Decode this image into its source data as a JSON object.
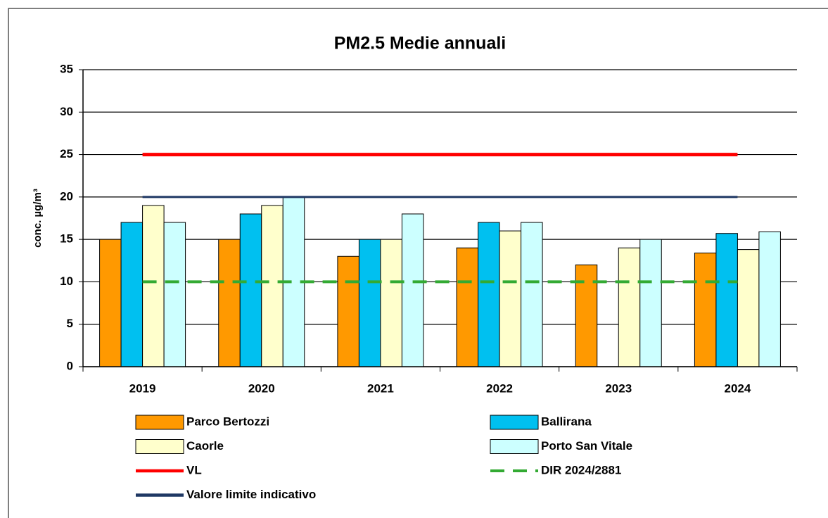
{
  "chart_data": {
    "type": "bar",
    "title": "PM2.5 Medie annuali",
    "y_label": "conc. µg/m³",
    "categories": [
      "2019",
      "2020",
      "2021",
      "2022",
      "2023",
      "2024"
    ],
    "series": [
      {
        "name": "Parco Bertozzi",
        "color": "#ff9900",
        "values": [
          15,
          15,
          13,
          14,
          12,
          13.4
        ]
      },
      {
        "name": "Ballirana",
        "color": "#00c0f0",
        "values": [
          17,
          18,
          15,
          17,
          null,
          15.7
        ]
      },
      {
        "name": "Caorle",
        "color": "#ffffcc",
        "values": [
          19,
          19,
          15,
          16,
          14,
          13.8
        ]
      },
      {
        "name": "Porto San Vitale",
        "color": "#ccffff",
        "values": [
          17,
          20,
          18,
          17,
          15,
          15.9
        ]
      }
    ],
    "lines": [
      {
        "name": "VL",
        "color": "#ff0000",
        "dashed": false,
        "values": [
          25,
          25,
          25,
          25,
          25,
          25
        ]
      },
      {
        "name": "DIR 2024/2881",
        "color": "#33aa33",
        "dashed": true,
        "values": [
          10,
          10,
          10,
          10,
          10,
          10
        ]
      },
      {
        "name": "Valore limite indicativo",
        "color": "#1f3864",
        "dashed": false,
        "values": [
          20,
          20,
          20,
          20,
          20,
          20
        ]
      }
    ],
    "ylim": [
      0,
      35
    ],
    "yticks": [
      0,
      5,
      10,
      15,
      20,
      25,
      30,
      35
    ],
    "grid": true
  }
}
